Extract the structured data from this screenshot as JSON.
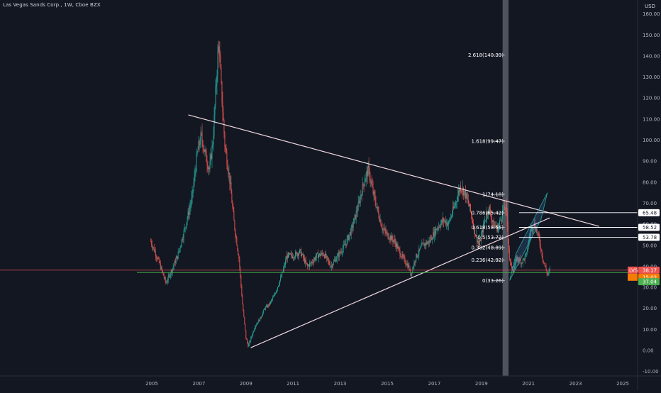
{
  "header": {
    "title": "Las Vegas Sands Corp., 1W, Cboe BZX",
    "currency": "USD"
  },
  "colors": {
    "background": "#131722",
    "bull": "#26a69a",
    "bear": "#ef5350",
    "trend_line": "#f0d8e0",
    "support_line": "#4caf50",
    "last_price_line": "#ef5350",
    "level_line": "#ffffff"
  },
  "chart_data": {
    "type": "candlestick",
    "ylim": [
      -12,
      163
    ],
    "xlim": [
      2004.0,
      2025.6
    ],
    "y_ticks": [
      -10,
      0,
      10,
      20,
      30,
      40,
      50,
      60,
      70,
      80,
      90,
      100,
      110,
      120,
      130,
      140,
      150,
      160
    ],
    "y_tick_labels": [
      "-10.00",
      "0.00",
      "10.00",
      "20.00",
      "30.00",
      "40.00",
      "50.00",
      "60.00",
      "70.00",
      "80.00",
      "90.00",
      "100.00",
      "110.00",
      "120.00",
      "130.00",
      "140.00",
      "150.00",
      "160.00"
    ],
    "x_ticks": [
      2005,
      2007,
      2009,
      2011,
      2013,
      2015,
      2017,
      2019,
      2021,
      2023,
      2025
    ],
    "x_tick_labels": [
      "2005",
      "2007",
      "2009",
      "2011",
      "2013",
      "2015",
      "2017",
      "2019",
      "2021",
      "2023",
      "2025"
    ],
    "price_path": [
      [
        2004.95,
        52
      ],
      [
        2005.3,
        42
      ],
      [
        2005.6,
        32
      ],
      [
        2005.8,
        37
      ],
      [
        2006.1,
        45
      ],
      [
        2006.4,
        58
      ],
      [
        2006.7,
        72
      ],
      [
        2006.95,
        95
      ],
      [
        2007.1,
        102
      ],
      [
        2007.3,
        92
      ],
      [
        2007.45,
        86
      ],
      [
        2007.6,
        100
      ],
      [
        2007.8,
        140
      ],
      [
        2007.85,
        146
      ],
      [
        2007.95,
        125
      ],
      [
        2008.1,
        98
      ],
      [
        2008.3,
        82
      ],
      [
        2008.5,
        60
      ],
      [
        2008.7,
        44
      ],
      [
        2008.85,
        22
      ],
      [
        2009.0,
        6
      ],
      [
        2009.1,
        2
      ],
      [
        2009.25,
        7
      ],
      [
        2009.4,
        12
      ],
      [
        2009.6,
        15
      ],
      [
        2009.8,
        20
      ],
      [
        2010.0,
        22
      ],
      [
        2010.2,
        26
      ],
      [
        2010.5,
        35
      ],
      [
        2010.75,
        45
      ],
      [
        2011.0,
        45
      ],
      [
        2011.3,
        47
      ],
      [
        2011.6,
        40
      ],
      [
        2011.8,
        42
      ],
      [
        2012.0,
        45
      ],
      [
        2012.3,
        46
      ],
      [
        2012.6,
        40
      ],
      [
        2012.9,
        45
      ],
      [
        2013.2,
        50
      ],
      [
        2013.5,
        58
      ],
      [
        2013.8,
        70
      ],
      [
        2014.0,
        80
      ],
      [
        2014.2,
        86
      ],
      [
        2014.4,
        75
      ],
      [
        2014.6,
        66
      ],
      [
        2014.8,
        58
      ],
      [
        2015.0,
        55
      ],
      [
        2015.3,
        52
      ],
      [
        2015.6,
        45
      ],
      [
        2015.9,
        40
      ],
      [
        2016.0,
        36
      ],
      [
        2016.2,
        44
      ],
      [
        2016.5,
        50
      ],
      [
        2016.8,
        52
      ],
      [
        2017.1,
        58
      ],
      [
        2017.4,
        62
      ],
      [
        2017.6,
        60
      ],
      [
        2017.9,
        70
      ],
      [
        2018.1,
        78
      ],
      [
        2018.3,
        75
      ],
      [
        2018.5,
        68
      ],
      [
        2018.75,
        55
      ],
      [
        2018.9,
        50
      ],
      [
        2019.1,
        60
      ],
      [
        2019.3,
        68
      ],
      [
        2019.5,
        60
      ],
      [
        2019.7,
        58
      ],
      [
        2019.9,
        66
      ],
      [
        2020.05,
        68
      ],
      [
        2020.2,
        42
      ],
      [
        2020.35,
        38
      ],
      [
        2020.5,
        44
      ],
      [
        2020.7,
        42
      ],
      [
        2020.9,
        45
      ],
      [
        2021.1,
        58
      ],
      [
        2021.25,
        60
      ],
      [
        2021.4,
        55
      ],
      [
        2021.5,
        50
      ],
      [
        2021.6,
        44
      ],
      [
        2021.75,
        38
      ],
      [
        2021.82,
        36
      ],
      [
        2021.88,
        38
      ],
      [
        2021.92,
        38.17
      ]
    ],
    "trend_lines": [
      {
        "from": [
          2006.55,
          112
        ],
        "to": [
          2024.0,
          59
        ]
      },
      {
        "from": [
          2009.2,
          1.3
        ],
        "to": [
          2021.9,
          63
        ]
      }
    ],
    "channel": {
      "from_low": [
        2020.2,
        33.26
      ],
      "to_high": [
        2021.8,
        75
      ]
    },
    "horizontal_levels": [
      {
        "value": 65.48,
        "label": "65.48"
      },
      {
        "value": 58.52,
        "label": "58.52"
      },
      {
        "value": 53.78,
        "label": "53.78"
      }
    ],
    "support_level": {
      "value": 37.04,
      "label": "37.04"
    },
    "last_price": {
      "value": 38.17,
      "label": "38.17",
      "symbol": "LVS",
      "countdown": "15:02"
    },
    "fib_levels": [
      {
        "ratio": "0",
        "value": 33.26,
        "label": "0(33.26)"
      },
      {
        "ratio": "0.236",
        "value": 42.92,
        "label": "0.236(42.92)"
      },
      {
        "ratio": "0.382",
        "value": 48.89,
        "label": "0.382(48.89)"
      },
      {
        "ratio": "0.5",
        "value": 53.72,
        "label": "0.5(53.72)"
      },
      {
        "ratio": "0.618",
        "value": 58.55,
        "label": "0.618(58.55)"
      },
      {
        "ratio": "0.786",
        "value": 65.42,
        "label": "0.786(65.42)"
      },
      {
        "ratio": "1",
        "value": 74.18,
        "label": "1(74.18)"
      },
      {
        "ratio": "1.618",
        "value": 99.47,
        "label": "1.618(99.47)"
      },
      {
        "ratio": "2.618",
        "value": 140.39,
        "label": "2.618(140.39)"
      }
    ],
    "fib_x_range": [
      2018.8,
      2020.0
    ],
    "highlight_band": [
      2019.9,
      2020.15
    ]
  }
}
